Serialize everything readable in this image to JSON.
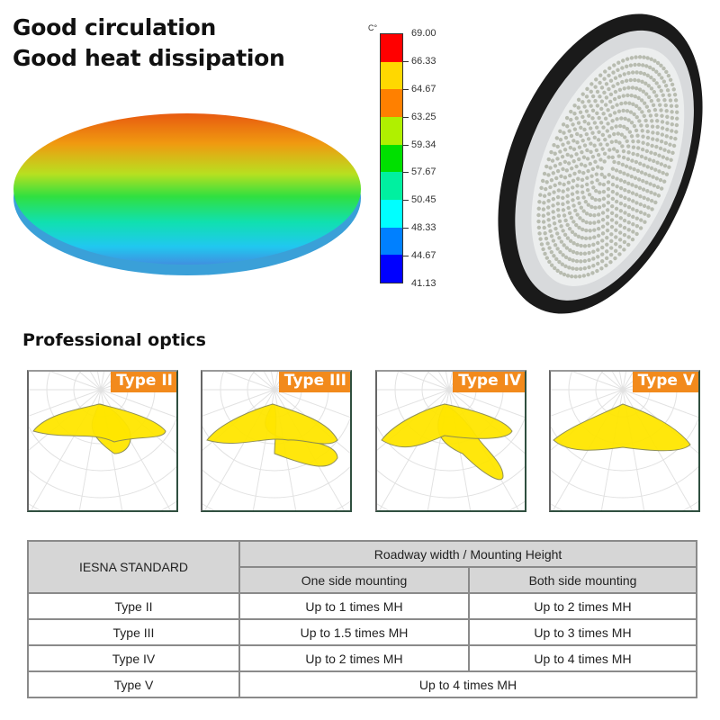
{
  "headline": {
    "line1": "Good circulation",
    "line2": "Good heat dissipation"
  },
  "temperature_scale": {
    "unit": "C°",
    "labels": [
      "69.00",
      "66.33",
      "64.67",
      "63.25",
      "59.34",
      "57.67",
      "50.45",
      "48.33",
      "44.67",
      "41.13"
    ],
    "colors": [
      "#ff0000",
      "#ffd800",
      "#ff8000",
      "#b0f000",
      "#00e000",
      "#00f0a0",
      "#00ffff",
      "#0080ff",
      "#0000ff"
    ]
  },
  "optics": {
    "title": "Professional optics",
    "types": [
      "Type II",
      "Type III",
      "Type IV",
      "Type V"
    ],
    "lobe_color": "#ffe600",
    "tag_color": "#f28a1c"
  },
  "table": {
    "header": {
      "standard": "IESNA STANDARD",
      "group": "Roadway width / Mounting Height",
      "col1": "One side mounting",
      "col2": "Both side mounting"
    },
    "rows": [
      {
        "type": "Type II",
        "one": "Up to 1 times MH",
        "both": "Up to 2 times MH"
      },
      {
        "type": "Type III",
        "one": "Up to 1.5 times MH",
        "both": "Up to 3 times MH"
      },
      {
        "type": "Type IV",
        "one": "Up to 2 times MH",
        "both": "Up to 4 times MH"
      },
      {
        "type": "Type V",
        "merged": "Up to 4 times MH"
      }
    ]
  }
}
